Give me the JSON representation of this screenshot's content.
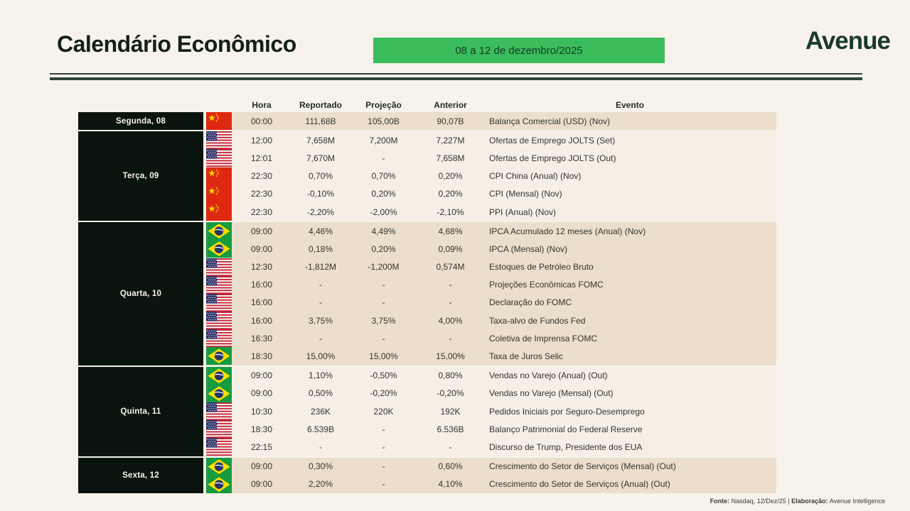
{
  "header": {
    "title": "Calendário Econômico",
    "period_badge": "08 a 12 de dezembro/2025",
    "brand": "Avenue"
  },
  "colors": {
    "accent_green": "#3bbc5c",
    "brand_dark_green": "#1b3a2d",
    "day_cell_bg": "#0a140e",
    "row_shade_dark": "#ebdecc",
    "row_shade_light": "#f5efe6",
    "page_bg": "#f7f3ec"
  },
  "table": {
    "columns": [
      "Hora",
      "Reportado",
      "Projeção",
      "Anterior",
      "Evento"
    ],
    "groups": [
      {
        "day": "Segunda, 08",
        "shade": "dark",
        "rows": [
          {
            "flag": "china-flag",
            "hora": "00:00",
            "reportado": "111,68B",
            "projecao": "105,00B",
            "anterior": "90,07B",
            "evento": "Balança Comercial (USD) (Nov)"
          }
        ]
      },
      {
        "day": "Terça, 09",
        "shade": "light",
        "rows": [
          {
            "flag": "usa-flag",
            "hora": "12:00",
            "reportado": "7,658M",
            "projecao": "7,200M",
            "anterior": "7,227M",
            "evento": "Ofertas de Emprego JOLTS (Set)"
          },
          {
            "flag": "usa-flag",
            "hora": "12:01",
            "reportado": "7,670M",
            "projecao": "-",
            "anterior": "7,658M",
            "evento": "Ofertas de Emprego JOLTS (Out)"
          },
          {
            "flag": "china-flag",
            "hora": "22:30",
            "reportado": "0,70%",
            "projecao": "0,70%",
            "anterior": "0,20%",
            "evento": "CPI China (Anual) (Nov)"
          },
          {
            "flag": "china-flag",
            "hora": "22:30",
            "reportado": "-0,10%",
            "projecao": "0,20%",
            "anterior": "0,20%",
            "evento": "CPI (Mensal) (Nov)"
          },
          {
            "flag": "china-flag",
            "hora": "22:30",
            "reportado": "-2,20%",
            "projecao": "-2,00%",
            "anterior": "-2,10%",
            "evento": "PPI (Anual) (Nov)"
          }
        ]
      },
      {
        "day": "Quarta, 10",
        "shade": "dark",
        "rows": [
          {
            "flag": "brazil-flag",
            "hora": "09:00",
            "reportado": "4,46%",
            "projecao": "4,49%",
            "anterior": "4,68%",
            "evento": "IPCA Acumulado 12 meses (Anual) (Nov)"
          },
          {
            "flag": "brazil-flag",
            "hora": "09:00",
            "reportado": "0,18%",
            "projecao": "0,20%",
            "anterior": "0,09%",
            "evento": "IPCA (Mensal) (Nov)"
          },
          {
            "flag": "usa-flag",
            "hora": "12:30",
            "reportado": "-1,812M",
            "projecao": "-1,200M",
            "anterior": "0,574M",
            "evento": "Estoques de Petróleo Bruto"
          },
          {
            "flag": "usa-flag",
            "hora": "16:00",
            "reportado": "-",
            "projecao": "-",
            "anterior": "-",
            "evento": "Projeções Econômicas FOMC"
          },
          {
            "flag": "usa-flag",
            "hora": "16:00",
            "reportado": "-",
            "projecao": "-",
            "anterior": "-",
            "evento": "Declaração do FOMC"
          },
          {
            "flag": "usa-flag",
            "hora": "16:00",
            "reportado": "3,75%",
            "projecao": "3,75%",
            "anterior": "4,00%",
            "evento": "Taxa-alvo de Fundos Fed"
          },
          {
            "flag": "usa-flag",
            "hora": "16:30",
            "reportado": "-",
            "projecao": "-",
            "anterior": "-",
            "evento": "Coletiva de Imprensa FOMC"
          },
          {
            "flag": "brazil-flag",
            "hora": "18:30",
            "reportado": "15,00%",
            "projecao": "15,00%",
            "anterior": "15,00%",
            "evento": "Taxa de Juros Selic"
          }
        ]
      },
      {
        "day": "Quinta, 11",
        "shade": "light",
        "rows": [
          {
            "flag": "brazil-flag",
            "hora": "09:00",
            "reportado": "1,10%",
            "projecao": "-0,50%",
            "anterior": "0,80%",
            "evento": "Vendas no Varejo (Anual) (Out)"
          },
          {
            "flag": "brazil-flag",
            "hora": "09:00",
            "reportado": "0,50%",
            "projecao": "-0,20%",
            "anterior": "-0,20%",
            "evento": "Vendas no Varejo (Mensal) (Out)"
          },
          {
            "flag": "usa-flag",
            "hora": "10:30",
            "reportado": "236K",
            "projecao": "220K",
            "anterior": "192K",
            "evento": "Pedidos Iniciais por Seguro-Desemprego"
          },
          {
            "flag": "usa-flag",
            "hora": "18:30",
            "reportado": "6.539B",
            "projecao": "-",
            "anterior": "6.536B",
            "evento": "Balanço Patrimonial do Federal Reserve"
          },
          {
            "flag": "usa-flag",
            "hora": "22:15",
            "reportado": "-",
            "projecao": "-",
            "anterior": "-",
            "evento": "Discurso de Trump, Presidente dos EUA"
          }
        ]
      },
      {
        "day": "Sexta, 12",
        "shade": "dark",
        "rows": [
          {
            "flag": "brazil-flag",
            "hora": "09:00",
            "reportado": "0,30%",
            "projecao": "-",
            "anterior": "0,60%",
            "evento": "Crescimento do Setor de Serviços (Mensal) (Out)"
          },
          {
            "flag": "brazil-flag",
            "hora": "09:00",
            "reportado": "2,20%",
            "projecao": "-",
            "anterior": "4,10%",
            "evento": "Crescimento do Setor de Serviços (Anual) (Out)"
          }
        ]
      }
    ]
  },
  "footer": {
    "fonte_label": "Fonte:",
    "fonte_value": " Nasdaq, 12/Dez/25 | ",
    "elaboracao_label": "Elaboração:",
    "elaboracao_value": " Avenue Intelligence"
  }
}
